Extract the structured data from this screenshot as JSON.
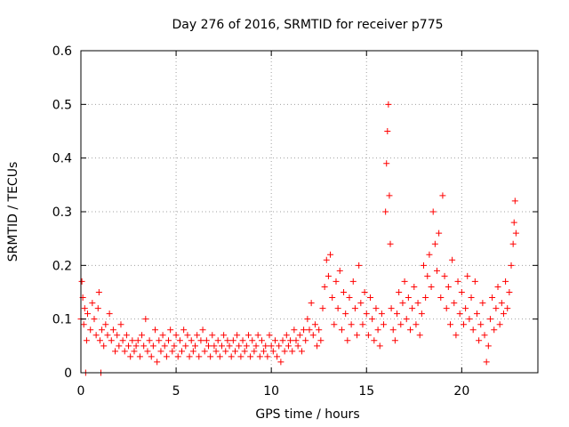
{
  "chart_data": {
    "type": "scatter",
    "title": "Day 276 of 2016, SRMTID for receiver p775",
    "xlabel": "GPS time / hours",
    "ylabel": "SRMTID / TECUs",
    "xlim": [
      0,
      24
    ],
    "ylim": [
      0,
      0.6
    ],
    "xticks": [
      0,
      5,
      10,
      15,
      20
    ],
    "xtick_labels": [
      "0",
      "5",
      "10",
      "15",
      "20"
    ],
    "yticks": [
      0,
      0.1,
      0.2,
      0.3,
      0.4,
      0.5,
      0.6
    ],
    "ytick_labels": [
      "0",
      "0.1",
      "0.2",
      "0.3",
      "0.4",
      "0.5",
      "0.6"
    ],
    "grid": true,
    "marker": "+",
    "color": "#ff0000",
    "series": [
      {
        "name": "SRMTID",
        "points": [
          [
            0.0,
            0.1
          ],
          [
            0.05,
            0.17
          ],
          [
            0.1,
            0.14
          ],
          [
            0.15,
            0.09
          ],
          [
            0.2,
            0.12
          ],
          [
            0.25,
            0.0
          ],
          [
            0.3,
            0.06
          ],
          [
            0.35,
            0.11
          ],
          [
            0.5,
            0.08
          ],
          [
            0.6,
            0.13
          ],
          [
            0.7,
            0.1
          ],
          [
            0.8,
            0.07
          ],
          [
            0.9,
            0.12
          ],
          [
            0.95,
            0.15
          ],
          [
            1.0,
            0.06
          ],
          [
            1.05,
            0.0
          ],
          [
            1.1,
            0.08
          ],
          [
            1.2,
            0.05
          ],
          [
            1.3,
            0.09
          ],
          [
            1.4,
            0.07
          ],
          [
            1.5,
            0.11
          ],
          [
            1.6,
            0.06
          ],
          [
            1.7,
            0.08
          ],
          [
            1.8,
            0.04
          ],
          [
            1.9,
            0.07
          ],
          [
            2.0,
            0.05
          ],
          [
            2.1,
            0.09
          ],
          [
            2.2,
            0.06
          ],
          [
            2.3,
            0.04
          ],
          [
            2.4,
            0.07
          ],
          [
            2.5,
            0.05
          ],
          [
            2.6,
            0.03
          ],
          [
            2.7,
            0.06
          ],
          [
            2.8,
            0.04
          ],
          [
            2.9,
            0.05
          ],
          [
            3.0,
            0.06
          ],
          [
            3.1,
            0.03
          ],
          [
            3.2,
            0.07
          ],
          [
            3.3,
            0.05
          ],
          [
            3.4,
            0.1
          ],
          [
            3.5,
            0.04
          ],
          [
            3.6,
            0.06
          ],
          [
            3.7,
            0.03
          ],
          [
            3.8,
            0.05
          ],
          [
            3.9,
            0.08
          ],
          [
            4.0,
            0.02
          ],
          [
            4.1,
            0.06
          ],
          [
            4.2,
            0.04
          ],
          [
            4.3,
            0.07
          ],
          [
            4.4,
            0.05
          ],
          [
            4.5,
            0.03
          ],
          [
            4.6,
            0.06
          ],
          [
            4.7,
            0.08
          ],
          [
            4.8,
            0.04
          ],
          [
            4.9,
            0.05
          ],
          [
            5.0,
            0.07
          ],
          [
            5.1,
            0.03
          ],
          [
            5.2,
            0.06
          ],
          [
            5.3,
            0.04
          ],
          [
            5.4,
            0.08
          ],
          [
            5.5,
            0.05
          ],
          [
            5.6,
            0.07
          ],
          [
            5.7,
            0.03
          ],
          [
            5.8,
            0.06
          ],
          [
            5.9,
            0.04
          ],
          [
            6.0,
            0.05
          ],
          [
            6.1,
            0.07
          ],
          [
            6.2,
            0.03
          ],
          [
            6.3,
            0.06
          ],
          [
            6.4,
            0.08
          ],
          [
            6.5,
            0.04
          ],
          [
            6.6,
            0.06
          ],
          [
            6.7,
            0.05
          ],
          [
            6.8,
            0.03
          ],
          [
            6.9,
            0.07
          ],
          [
            7.0,
            0.05
          ],
          [
            7.1,
            0.04
          ],
          [
            7.2,
            0.06
          ],
          [
            7.3,
            0.03
          ],
          [
            7.4,
            0.05
          ],
          [
            7.5,
            0.07
          ],
          [
            7.6,
            0.04
          ],
          [
            7.7,
            0.06
          ],
          [
            7.8,
            0.05
          ],
          [
            7.9,
            0.03
          ],
          [
            8.0,
            0.06
          ],
          [
            8.1,
            0.04
          ],
          [
            8.2,
            0.07
          ],
          [
            8.3,
            0.05
          ],
          [
            8.4,
            0.03
          ],
          [
            8.5,
            0.06
          ],
          [
            8.6,
            0.04
          ],
          [
            8.7,
            0.05
          ],
          [
            8.8,
            0.07
          ],
          [
            8.9,
            0.03
          ],
          [
            9.0,
            0.06
          ],
          [
            9.1,
            0.04
          ],
          [
            9.2,
            0.05
          ],
          [
            9.3,
            0.07
          ],
          [
            9.4,
            0.03
          ],
          [
            9.5,
            0.06
          ],
          [
            9.6,
            0.04
          ],
          [
            9.7,
            0.05
          ],
          [
            9.8,
            0.03
          ],
          [
            9.9,
            0.07
          ],
          [
            10.0,
            0.05
          ],
          [
            10.1,
            0.04
          ],
          [
            10.2,
            0.06
          ],
          [
            10.3,
            0.03
          ],
          [
            10.4,
            0.05
          ],
          [
            10.5,
            0.02
          ],
          [
            10.6,
            0.06
          ],
          [
            10.7,
            0.04
          ],
          [
            10.8,
            0.07
          ],
          [
            10.9,
            0.05
          ],
          [
            11.0,
            0.06
          ],
          [
            11.1,
            0.04
          ],
          [
            11.2,
            0.08
          ],
          [
            11.3,
            0.06
          ],
          [
            11.4,
            0.05
          ],
          [
            11.5,
            0.07
          ],
          [
            11.6,
            0.04
          ],
          [
            11.7,
            0.08
          ],
          [
            11.8,
            0.06
          ],
          [
            11.9,
            0.1
          ],
          [
            12.0,
            0.08
          ],
          [
            12.1,
            0.13
          ],
          [
            12.2,
            0.07
          ],
          [
            12.3,
            0.09
          ],
          [
            12.4,
            0.05
          ],
          [
            12.5,
            0.08
          ],
          [
            12.6,
            0.06
          ],
          [
            12.7,
            0.12
          ],
          [
            12.8,
            0.16
          ],
          [
            12.9,
            0.21
          ],
          [
            13.0,
            0.18
          ],
          [
            13.1,
            0.22
          ],
          [
            13.2,
            0.14
          ],
          [
            13.3,
            0.09
          ],
          [
            13.4,
            0.17
          ],
          [
            13.5,
            0.12
          ],
          [
            13.6,
            0.19
          ],
          [
            13.7,
            0.08
          ],
          [
            13.8,
            0.15
          ],
          [
            13.9,
            0.11
          ],
          [
            14.0,
            0.06
          ],
          [
            14.1,
            0.14
          ],
          [
            14.2,
            0.09
          ],
          [
            14.3,
            0.17
          ],
          [
            14.4,
            0.12
          ],
          [
            14.5,
            0.07
          ],
          [
            14.6,
            0.2
          ],
          [
            14.7,
            0.13
          ],
          [
            14.8,
            0.09
          ],
          [
            14.9,
            0.15
          ],
          [
            15.0,
            0.11
          ],
          [
            15.1,
            0.07
          ],
          [
            15.2,
            0.14
          ],
          [
            15.3,
            0.1
          ],
          [
            15.4,
            0.06
          ],
          [
            15.5,
            0.12
          ],
          [
            15.6,
            0.08
          ],
          [
            15.7,
            0.05
          ],
          [
            15.8,
            0.11
          ],
          [
            15.9,
            0.09
          ],
          [
            16.0,
            0.3
          ],
          [
            16.05,
            0.39
          ],
          [
            16.1,
            0.45
          ],
          [
            16.15,
            0.5
          ],
          [
            16.2,
            0.33
          ],
          [
            16.25,
            0.24
          ],
          [
            16.3,
            0.12
          ],
          [
            16.4,
            0.08
          ],
          [
            16.5,
            0.06
          ],
          [
            16.6,
            0.11
          ],
          [
            16.7,
            0.15
          ],
          [
            16.8,
            0.09
          ],
          [
            16.9,
            0.13
          ],
          [
            17.0,
            0.17
          ],
          [
            17.1,
            0.1
          ],
          [
            17.2,
            0.14
          ],
          [
            17.3,
            0.08
          ],
          [
            17.4,
            0.12
          ],
          [
            17.5,
            0.16
          ],
          [
            17.6,
            0.09
          ],
          [
            17.7,
            0.13
          ],
          [
            17.8,
            0.07
          ],
          [
            17.9,
            0.11
          ],
          [
            18.0,
            0.2
          ],
          [
            18.1,
            0.14
          ],
          [
            18.2,
            0.18
          ],
          [
            18.3,
            0.22
          ],
          [
            18.4,
            0.16
          ],
          [
            18.5,
            0.3
          ],
          [
            18.6,
            0.24
          ],
          [
            18.7,
            0.19
          ],
          [
            18.8,
            0.26
          ],
          [
            18.9,
            0.14
          ],
          [
            19.0,
            0.33
          ],
          [
            19.1,
            0.18
          ],
          [
            19.2,
            0.12
          ],
          [
            19.3,
            0.16
          ],
          [
            19.4,
            0.09
          ],
          [
            19.5,
            0.21
          ],
          [
            19.6,
            0.13
          ],
          [
            19.7,
            0.07
          ],
          [
            19.8,
            0.17
          ],
          [
            19.9,
            0.11
          ],
          [
            20.0,
            0.15
          ],
          [
            20.1,
            0.09
          ],
          [
            20.2,
            0.12
          ],
          [
            20.3,
            0.18
          ],
          [
            20.4,
            0.1
          ],
          [
            20.5,
            0.14
          ],
          [
            20.6,
            0.08
          ],
          [
            20.7,
            0.17
          ],
          [
            20.8,
            0.11
          ],
          [
            20.9,
            0.06
          ],
          [
            21.0,
            0.09
          ],
          [
            21.1,
            0.13
          ],
          [
            21.2,
            0.07
          ],
          [
            21.3,
            0.02
          ],
          [
            21.4,
            0.05
          ],
          [
            21.5,
            0.1
          ],
          [
            21.6,
            0.14
          ],
          [
            21.7,
            0.08
          ],
          [
            21.8,
            0.12
          ],
          [
            21.9,
            0.16
          ],
          [
            22.0,
            0.09
          ],
          [
            22.1,
            0.13
          ],
          [
            22.2,
            0.11
          ],
          [
            22.3,
            0.17
          ],
          [
            22.4,
            0.12
          ],
          [
            22.5,
            0.15
          ],
          [
            22.6,
            0.2
          ],
          [
            22.7,
            0.24
          ],
          [
            22.75,
            0.28
          ],
          [
            22.8,
            0.32
          ],
          [
            22.85,
            0.26
          ]
        ]
      }
    ]
  }
}
